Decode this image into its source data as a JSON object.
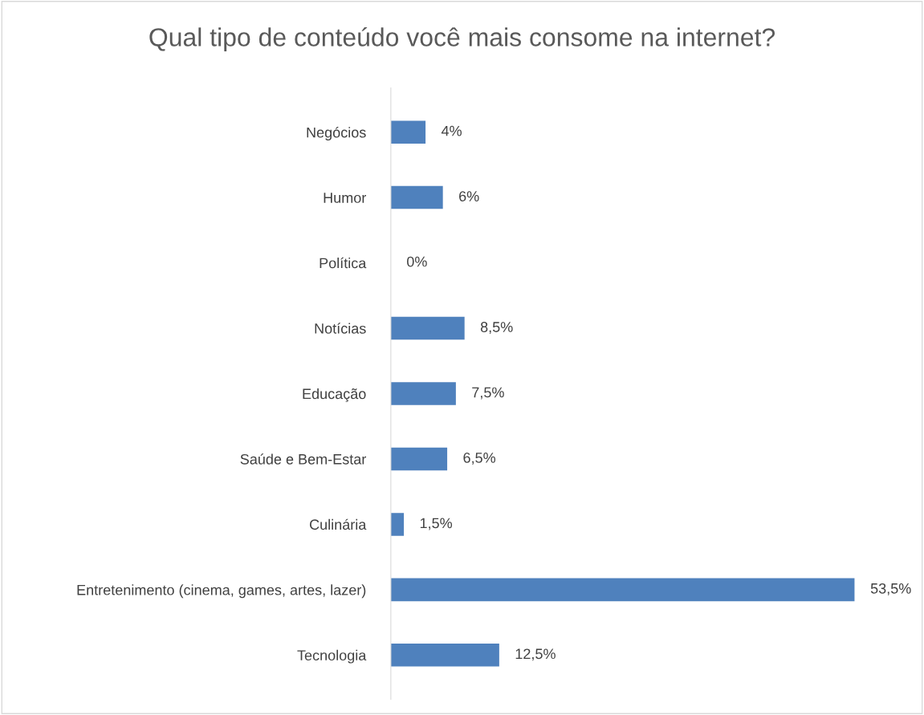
{
  "chart_data": {
    "type": "bar",
    "orientation": "horizontal",
    "title": "Qual tipo de conteúdo você mais consome na internet?",
    "categories": [
      "Negócios",
      "Humor",
      "Política",
      "Notícias",
      "Educação",
      "Saúde e Bem-Estar",
      "Culinária",
      "Entretenimento (cinema, games, artes, lazer)",
      "Tecnologia"
    ],
    "values": [
      4,
      6,
      0,
      8.5,
      7.5,
      6.5,
      1.5,
      53.5,
      12.5
    ],
    "value_labels": [
      "4%",
      "6%",
      "0%",
      "8,5%",
      "7,5%",
      "6,5%",
      "1,5%",
      "53,5%",
      "12,5%"
    ],
    "color": "#4f81bd",
    "tick_labels": "y",
    "grid": false,
    "legend": false
  }
}
